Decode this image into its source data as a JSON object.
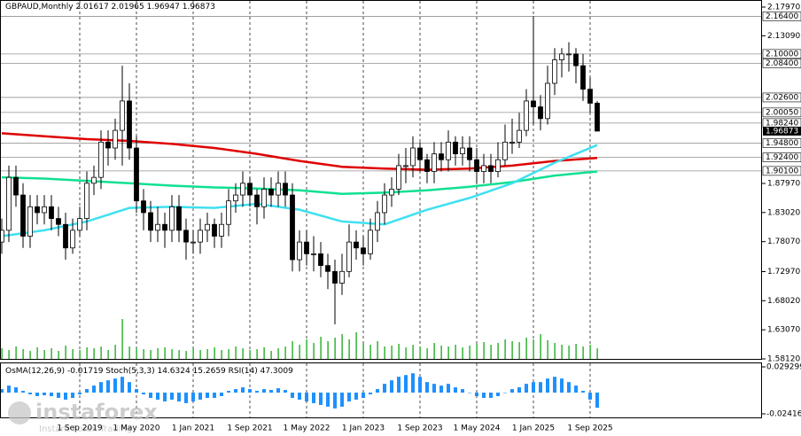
{
  "chart_data": {
    "type": "candlestick",
    "title": "GBPAUD,Monthly",
    "categories": [
      null,
      null,
      null,
      null,
      null,
      null,
      null,
      null,
      null,
      null,
      null,
      "1 Sep 2019",
      null,
      null,
      null,
      null,
      null,
      null,
      null,
      "1 May 2020",
      null,
      null,
      null,
      null,
      null,
      null,
      null,
      "1 Jan 2021",
      null,
      null,
      null,
      null,
      null,
      null,
      null,
      "1 Sep 2021",
      null,
      null,
      null,
      null,
      null,
      null,
      null,
      "1 May 2022",
      null,
      null,
      null,
      null,
      null,
      null,
      null,
      "1 Jan 2023",
      null,
      null,
      null,
      null,
      null,
      null,
      null,
      "1 Sep 2023",
      null,
      null,
      null,
      null,
      null,
      null,
      null,
      "1 May 2024",
      null,
      null,
      null,
      null,
      null,
      null,
      null,
      "1 Jan 2025",
      null,
      null,
      null,
      null,
      null,
      null,
      null,
      "1 Sep 2025",
      null
    ],
    "open": [
      1.78,
      1.8,
      1.89,
      1.86,
      1.79,
      1.84,
      1.83,
      1.84,
      1.82,
      1.81,
      1.77,
      1.8,
      1.82,
      1.88,
      1.89,
      1.95,
      1.94,
      1.97,
      2.02,
      1.94,
      1.85,
      1.83,
      1.8,
      1.81,
      1.8,
      1.84,
      1.8,
      1.78,
      1.78,
      1.8,
      1.81,
      1.79,
      1.81,
      1.85,
      1.86,
      1.88,
      1.86,
      1.84,
      1.87,
      1.86,
      1.88,
      1.86,
      1.75,
      1.78,
      1.76,
      1.76,
      1.74,
      1.73,
      1.71,
      1.73,
      1.78,
      1.77,
      1.76,
      1.8,
      1.83,
      1.86,
      1.87,
      1.91,
      1.91,
      1.94,
      1.92,
      1.9,
      1.93,
      1.92,
      1.95,
      1.93,
      1.94,
      1.92,
      1.9,
      1.91,
      1.9,
      1.92,
      1.95,
      1.95,
      1.97,
      2.02,
      2.01,
      1.99,
      2.05,
      2.09,
      2.1,
      2.1,
      2.08,
      2.04,
      2.01617
    ],
    "high": [
      1.82,
      1.91,
      1.91,
      1.88,
      1.86,
      1.86,
      1.86,
      1.86,
      1.84,
      1.83,
      1.82,
      1.84,
      1.9,
      1.91,
      1.97,
      1.97,
      1.99,
      2.08,
      2.05,
      1.96,
      1.87,
      1.85,
      1.84,
      1.83,
      1.86,
      1.86,
      1.82,
      1.8,
      1.82,
      1.83,
      1.82,
      1.83,
      1.87,
      1.88,
      1.9,
      1.89,
      1.87,
      1.89,
      1.89,
      1.9,
      1.9,
      1.88,
      1.8,
      1.8,
      1.79,
      1.78,
      1.76,
      1.75,
      1.76,
      1.81,
      1.8,
      1.79,
      1.82,
      1.85,
      1.88,
      1.89,
      1.93,
      1.94,
      1.96,
      1.95,
      1.93,
      1.95,
      1.95,
      1.97,
      1.96,
      1.96,
      1.96,
      1.94,
      1.93,
      1.93,
      1.95,
      1.98,
      1.99,
      2.0,
      2.04,
      2.164,
      2.03,
      2.08,
      2.11,
      2.11,
      2.12,
      2.11,
      2.1,
      2.06,
      2.01965
    ],
    "low": [
      1.76,
      1.78,
      1.84,
      1.77,
      1.77,
      1.81,
      1.81,
      1.8,
      1.79,
      1.75,
      1.76,
      1.79,
      1.8,
      1.86,
      1.87,
      1.91,
      1.92,
      1.91,
      1.92,
      1.83,
      1.8,
      1.78,
      1.78,
      1.77,
      1.78,
      1.78,
      1.75,
      1.76,
      1.76,
      1.78,
      1.77,
      1.77,
      1.79,
      1.83,
      1.84,
      1.84,
      1.81,
      1.82,
      1.84,
      1.84,
      1.84,
      1.73,
      1.73,
      1.74,
      1.73,
      1.72,
      1.7,
      1.64,
      1.69,
      1.72,
      1.75,
      1.74,
      1.75,
      1.78,
      1.81,
      1.84,
      1.86,
      1.88,
      1.89,
      1.9,
      1.88,
      1.88,
      1.9,
      1.9,
      1.91,
      1.91,
      1.9,
      1.88,
      1.88,
      1.88,
      1.89,
      1.91,
      1.93,
      1.94,
      1.96,
      1.98,
      1.97,
      1.98,
      2.03,
      2.06,
      2.07,
      2.05,
      2.02,
      2.0,
      1.96947
    ],
    "close": [
      1.8,
      1.89,
      1.86,
      1.79,
      1.84,
      1.83,
      1.84,
      1.82,
      1.81,
      1.77,
      1.8,
      1.82,
      1.88,
      1.89,
      1.95,
      1.94,
      1.97,
      2.02,
      1.94,
      1.85,
      1.83,
      1.8,
      1.81,
      1.8,
      1.84,
      1.8,
      1.78,
      1.78,
      1.8,
      1.81,
      1.79,
      1.81,
      1.85,
      1.86,
      1.88,
      1.86,
      1.84,
      1.87,
      1.86,
      1.88,
      1.86,
      1.75,
      1.78,
      1.76,
      1.76,
      1.74,
      1.73,
      1.71,
      1.73,
      1.78,
      1.77,
      1.76,
      1.8,
      1.83,
      1.86,
      1.87,
      1.91,
      1.91,
      1.94,
      1.92,
      1.9,
      1.93,
      1.92,
      1.95,
      1.93,
      1.94,
      1.92,
      1.9,
      1.91,
      1.9,
      1.92,
      1.95,
      1.95,
      1.97,
      2.02,
      2.01,
      1.99,
      2.05,
      2.09,
      2.1,
      2.1,
      2.08,
      2.04,
      2.01617,
      1.96873
    ],
    "ylim": [
      1.5812,
      2.1797
    ],
    "yticks": [
      {
        "value": 2.1797,
        "label": "2.17970"
      },
      {
        "value": 2.1309,
        "label": "2.13090"
      },
      {
        "value": 1.8797,
        "label": "1.87970"
      },
      {
        "value": 1.8302,
        "label": "1.83020"
      },
      {
        "value": 1.7807,
        "label": "1.78070"
      },
      {
        "value": 1.7297,
        "label": "1.72970"
      },
      {
        "value": 1.6802,
        "label": "1.68020"
      },
      {
        "value": 1.6307,
        "label": "1.63070"
      },
      {
        "value": 1.5812,
        "label": "1.58120"
      }
    ],
    "levels": [
      {
        "value": 2.164,
        "label": "2.16400"
      },
      {
        "value": 2.1,
        "label": "2.10000"
      },
      {
        "value": 2.084,
        "label": "2.08400"
      },
      {
        "value": 2.026,
        "label": "2.02600"
      },
      {
        "value": 2.0005,
        "label": "2.00050"
      },
      {
        "value": 1.9824,
        "label": "1.98240"
      },
      {
        "value": 1.948,
        "label": "1.94800"
      },
      {
        "value": 1.924,
        "label": "1.92400"
      },
      {
        "value": 1.901,
        "label": "1.90100"
      }
    ],
    "overlays": [
      {
        "color": "#e00000",
        "x": [
          0,
          6,
          12,
          18,
          24,
          30,
          36,
          42,
          48,
          54,
          60,
          66,
          72,
          78,
          84
        ],
        "values": [
          1.965,
          1.96,
          1.955,
          1.952,
          1.947,
          1.94,
          1.93,
          1.918,
          1.908,
          1.905,
          1.903,
          1.905,
          1.91,
          1.918,
          1.923
        ]
      },
      {
        "color": "#10e090",
        "x": [
          0,
          6,
          12,
          18,
          24,
          30,
          36,
          42,
          48,
          54,
          60,
          66,
          72,
          78,
          84
        ],
        "values": [
          1.89,
          1.888,
          1.884,
          1.88,
          1.876,
          1.873,
          1.871,
          1.868,
          1.862,
          1.864,
          1.868,
          1.874,
          1.882,
          1.893,
          1.9
        ]
      },
      {
        "color": "#40e0f0",
        "x": [
          0,
          6,
          12,
          18,
          24,
          30,
          36,
          42,
          48,
          54,
          60,
          66,
          72,
          78,
          84
        ],
        "values": [
          1.79,
          1.8,
          1.815,
          1.838,
          1.84,
          1.838,
          1.845,
          1.835,
          1.815,
          1.81,
          1.835,
          1.855,
          1.88,
          1.915,
          1.945
        ]
      }
    ],
    "volume": {
      "color": "#00a000",
      "values": [
        12,
        10,
        14,
        11,
        9,
        13,
        10,
        12,
        9,
        15,
        11,
        10,
        13,
        12,
        14,
        10,
        16,
        45,
        14,
        12,
        11,
        10,
        12,
        13,
        11,
        10,
        9,
        12,
        10,
        11,
        13,
        10,
        11,
        14,
        12,
        10,
        11,
        13,
        9,
        12,
        14,
        20,
        16,
        22,
        18,
        25,
        20,
        24,
        28,
        22,
        30,
        18,
        16,
        20,
        14,
        15,
        17,
        13,
        16,
        14,
        12,
        18,
        15,
        14,
        16,
        13,
        15,
        17,
        19,
        16,
        18,
        22,
        20,
        19,
        24,
        22,
        28,
        21,
        18,
        16,
        15,
        17,
        14,
        16,
        12
      ]
    },
    "oscillator": {
      "type": "bar",
      "label": "OsMA(12,26,9)",
      "extra": "Stoch(5,3,3) 14.6324 15.2659 RSI(14) 47.3009",
      "color": "#1e90ff",
      "values": [
        0.004,
        0.008,
        0.006,
        0.002,
        -0.002,
        -0.004,
        -0.003,
        -0.004,
        -0.006,
        -0.008,
        -0.006,
        -0.002,
        0.004,
        0.008,
        0.012,
        0.014,
        0.016,
        0.018,
        0.012,
        0.004,
        -0.002,
        -0.006,
        -0.008,
        -0.01,
        -0.008,
        -0.01,
        -0.012,
        -0.01,
        -0.008,
        -0.006,
        -0.006,
        -0.004,
        0.002,
        0.004,
        0.006,
        0.004,
        0.002,
        0.004,
        0.003,
        0.005,
        0.003,
        -0.006,
        -0.008,
        -0.01,
        -0.012,
        -0.014,
        -0.016,
        -0.018,
        -0.016,
        -0.01,
        -0.008,
        -0.006,
        -0.002,
        0.004,
        0.01,
        0.014,
        0.018,
        0.02,
        0.022,
        0.018,
        0.012,
        0.01,
        0.008,
        0.01,
        0.006,
        0.004,
        0.0,
        -0.004,
        -0.006,
        -0.006,
        -0.004,
        0.0,
        0.004,
        0.006,
        0.01,
        0.012,
        0.012,
        0.016,
        0.018,
        0.016,
        0.012,
        0.008,
        0.002,
        -0.008,
        -0.01719
      ],
      "ylim": [
        -0.024167,
        0.029299
      ],
      "yticks": [
        0.029299,
        -0.024167
      ]
    }
  },
  "watermark": {
    "brand": "instaforex",
    "tagline": "Instant Forex Trading"
  }
}
